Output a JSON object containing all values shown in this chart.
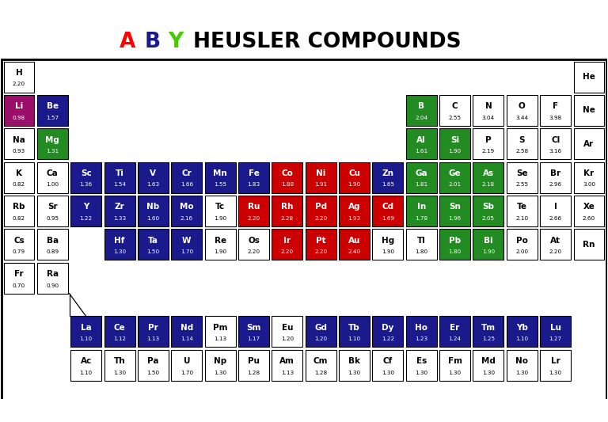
{
  "elements": [
    {
      "symbol": "H",
      "value": "2.20",
      "row": 0,
      "col": 0,
      "color": "#FFFFFF",
      "text_color": "black"
    },
    {
      "symbol": "He",
      "value": "",
      "row": 0,
      "col": 17,
      "color": "#FFFFFF",
      "text_color": "black"
    },
    {
      "symbol": "Li",
      "value": "0.98",
      "row": 1,
      "col": 0,
      "color": "#9B0F6A",
      "text_color": "white"
    },
    {
      "symbol": "Be",
      "value": "1.57",
      "row": 1,
      "col": 1,
      "color": "#1a1a8c",
      "text_color": "white"
    },
    {
      "symbol": "B",
      "value": "2.04",
      "row": 1,
      "col": 12,
      "color": "#228B22",
      "text_color": "white"
    },
    {
      "symbol": "C",
      "value": "2.55",
      "row": 1,
      "col": 13,
      "color": "#FFFFFF",
      "text_color": "black"
    },
    {
      "symbol": "N",
      "value": "3.04",
      "row": 1,
      "col": 14,
      "color": "#FFFFFF",
      "text_color": "black"
    },
    {
      "symbol": "O",
      "value": "3.44",
      "row": 1,
      "col": 15,
      "color": "#FFFFFF",
      "text_color": "black"
    },
    {
      "symbol": "F",
      "value": "3.98",
      "row": 1,
      "col": 16,
      "color": "#FFFFFF",
      "text_color": "black"
    },
    {
      "symbol": "Ne",
      "value": "",
      "row": 1,
      "col": 17,
      "color": "#FFFFFF",
      "text_color": "black"
    },
    {
      "symbol": "Na",
      "value": "0.93",
      "row": 2,
      "col": 0,
      "color": "#FFFFFF",
      "text_color": "black"
    },
    {
      "symbol": "Mg",
      "value": "1.31",
      "row": 2,
      "col": 1,
      "color": "#228B22",
      "text_color": "white"
    },
    {
      "symbol": "Al",
      "value": "1.61",
      "row": 2,
      "col": 12,
      "color": "#228B22",
      "text_color": "white"
    },
    {
      "symbol": "Si",
      "value": "1.90",
      "row": 2,
      "col": 13,
      "color": "#228B22",
      "text_color": "white"
    },
    {
      "symbol": "P",
      "value": "2.19",
      "row": 2,
      "col": 14,
      "color": "#FFFFFF",
      "text_color": "black"
    },
    {
      "symbol": "S",
      "value": "2.58",
      "row": 2,
      "col": 15,
      "color": "#FFFFFF",
      "text_color": "black"
    },
    {
      "symbol": "Cl",
      "value": "3.16",
      "row": 2,
      "col": 16,
      "color": "#FFFFFF",
      "text_color": "black"
    },
    {
      "symbol": "Ar",
      "value": "",
      "row": 2,
      "col": 17,
      "color": "#FFFFFF",
      "text_color": "black"
    },
    {
      "symbol": "K",
      "value": "0.82",
      "row": 3,
      "col": 0,
      "color": "#FFFFFF",
      "text_color": "black"
    },
    {
      "symbol": "Ca",
      "value": "1.00",
      "row": 3,
      "col": 1,
      "color": "#FFFFFF",
      "text_color": "black"
    },
    {
      "symbol": "Sc",
      "value": "1.36",
      "row": 3,
      "col": 2,
      "color": "#1a1a8c",
      "text_color": "white"
    },
    {
      "symbol": "Ti",
      "value": "1.54",
      "row": 3,
      "col": 3,
      "color": "#1a1a8c",
      "text_color": "white"
    },
    {
      "symbol": "V",
      "value": "1.63",
      "row": 3,
      "col": 4,
      "color": "#1a1a8c",
      "text_color": "white"
    },
    {
      "symbol": "Cr",
      "value": "1.66",
      "row": 3,
      "col": 5,
      "color": "#1a1a8c",
      "text_color": "white"
    },
    {
      "symbol": "Mn",
      "value": "1.55",
      "row": 3,
      "col": 6,
      "color": "#1a1a8c",
      "text_color": "white"
    },
    {
      "symbol": "Fe",
      "value": "1.83",
      "row": 3,
      "col": 7,
      "color": "#1a1a8c",
      "text_color": "white"
    },
    {
      "symbol": "Co",
      "value": "1.88",
      "row": 3,
      "col": 8,
      "color": "#CC0000",
      "text_color": "white"
    },
    {
      "symbol": "Ni",
      "value": "1.91",
      "row": 3,
      "col": 9,
      "color": "#CC0000",
      "text_color": "white"
    },
    {
      "symbol": "Cu",
      "value": "1.90",
      "row": 3,
      "col": 10,
      "color": "#CC0000",
      "text_color": "white"
    },
    {
      "symbol": "Zn",
      "value": "1.65",
      "row": 3,
      "col": 11,
      "color": "#1a1a8c",
      "text_color": "white"
    },
    {
      "symbol": "Ga",
      "value": "1.81",
      "row": 3,
      "col": 12,
      "color": "#228B22",
      "text_color": "white"
    },
    {
      "symbol": "Ge",
      "value": "2.01",
      "row": 3,
      "col": 13,
      "color": "#228B22",
      "text_color": "white"
    },
    {
      "symbol": "As",
      "value": "2.18",
      "row": 3,
      "col": 14,
      "color": "#228B22",
      "text_color": "white"
    },
    {
      "symbol": "Se",
      "value": "2.55",
      "row": 3,
      "col": 15,
      "color": "#FFFFFF",
      "text_color": "black"
    },
    {
      "symbol": "Br",
      "value": "2.96",
      "row": 3,
      "col": 16,
      "color": "#FFFFFF",
      "text_color": "black"
    },
    {
      "symbol": "Kr",
      "value": "3.00",
      "row": 3,
      "col": 17,
      "color": "#FFFFFF",
      "text_color": "black"
    },
    {
      "symbol": "Rb",
      "value": "0.82",
      "row": 4,
      "col": 0,
      "color": "#FFFFFF",
      "text_color": "black"
    },
    {
      "symbol": "Sr",
      "value": "0.95",
      "row": 4,
      "col": 1,
      "color": "#FFFFFF",
      "text_color": "black"
    },
    {
      "symbol": "Y",
      "value": "1.22",
      "row": 4,
      "col": 2,
      "color": "#1a1a8c",
      "text_color": "white"
    },
    {
      "symbol": "Zr",
      "value": "1.33",
      "row": 4,
      "col": 3,
      "color": "#1a1a8c",
      "text_color": "white"
    },
    {
      "symbol": "Nb",
      "value": "1.60",
      "row": 4,
      "col": 4,
      "color": "#1a1a8c",
      "text_color": "white"
    },
    {
      "symbol": "Mo",
      "value": "2.16",
      "row": 4,
      "col": 5,
      "color": "#1a1a8c",
      "text_color": "white"
    },
    {
      "symbol": "Tc",
      "value": "1.90",
      "row": 4,
      "col": 6,
      "color": "#FFFFFF",
      "text_color": "black"
    },
    {
      "symbol": "Ru",
      "value": "2.20",
      "row": 4,
      "col": 7,
      "color": "#CC0000",
      "text_color": "white"
    },
    {
      "symbol": "Rh",
      "value": "2.28",
      "row": 4,
      "col": 8,
      "color": "#CC0000",
      "text_color": "white"
    },
    {
      "symbol": "Pd",
      "value": "2.20",
      "row": 4,
      "col": 9,
      "color": "#CC0000",
      "text_color": "white"
    },
    {
      "symbol": "Ag",
      "value": "1.93",
      "row": 4,
      "col": 10,
      "color": "#CC0000",
      "text_color": "white"
    },
    {
      "symbol": "Cd",
      "value": "1.69",
      "row": 4,
      "col": 11,
      "color": "#CC0000",
      "text_color": "white"
    },
    {
      "symbol": "In",
      "value": "1.78",
      "row": 4,
      "col": 12,
      "color": "#228B22",
      "text_color": "white"
    },
    {
      "symbol": "Sn",
      "value": "1.96",
      "row": 4,
      "col": 13,
      "color": "#228B22",
      "text_color": "white"
    },
    {
      "symbol": "Sb",
      "value": "2.05",
      "row": 4,
      "col": 14,
      "color": "#228B22",
      "text_color": "white"
    },
    {
      "symbol": "Te",
      "value": "2.10",
      "row": 4,
      "col": 15,
      "color": "#FFFFFF",
      "text_color": "black"
    },
    {
      "symbol": "I",
      "value": "2.66",
      "row": 4,
      "col": 16,
      "color": "#FFFFFF",
      "text_color": "black"
    },
    {
      "symbol": "Xe",
      "value": "2.60",
      "row": 4,
      "col": 17,
      "color": "#FFFFFF",
      "text_color": "black"
    },
    {
      "symbol": "Cs",
      "value": "0.79",
      "row": 5,
      "col": 0,
      "color": "#FFFFFF",
      "text_color": "black"
    },
    {
      "symbol": "Ba",
      "value": "0.89",
      "row": 5,
      "col": 1,
      "color": "#FFFFFF",
      "text_color": "black"
    },
    {
      "symbol": "Hf",
      "value": "1.30",
      "row": 5,
      "col": 3,
      "color": "#1a1a8c",
      "text_color": "white"
    },
    {
      "symbol": "Ta",
      "value": "1.50",
      "row": 5,
      "col": 4,
      "color": "#1a1a8c",
      "text_color": "white"
    },
    {
      "symbol": "W",
      "value": "1.70",
      "row": 5,
      "col": 5,
      "color": "#1a1a8c",
      "text_color": "white"
    },
    {
      "symbol": "Re",
      "value": "1.90",
      "row": 5,
      "col": 6,
      "color": "#FFFFFF",
      "text_color": "black"
    },
    {
      "symbol": "Os",
      "value": "2.20",
      "row": 5,
      "col": 7,
      "color": "#FFFFFF",
      "text_color": "black"
    },
    {
      "symbol": "Ir",
      "value": "2.20",
      "row": 5,
      "col": 8,
      "color": "#CC0000",
      "text_color": "white"
    },
    {
      "symbol": "Pt",
      "value": "2.20",
      "row": 5,
      "col": 9,
      "color": "#CC0000",
      "text_color": "white"
    },
    {
      "symbol": "Au",
      "value": "2.40",
      "row": 5,
      "col": 10,
      "color": "#CC0000",
      "text_color": "white"
    },
    {
      "symbol": "Hg",
      "value": "1.90",
      "row": 5,
      "col": 11,
      "color": "#FFFFFF",
      "text_color": "black"
    },
    {
      "symbol": "Tl",
      "value": "1.80",
      "row": 5,
      "col": 12,
      "color": "#FFFFFF",
      "text_color": "black"
    },
    {
      "symbol": "Pb",
      "value": "1.80",
      "row": 5,
      "col": 13,
      "color": "#228B22",
      "text_color": "white"
    },
    {
      "symbol": "Bi",
      "value": "1.90",
      "row": 5,
      "col": 14,
      "color": "#228B22",
      "text_color": "white"
    },
    {
      "symbol": "Po",
      "value": "2.00",
      "row": 5,
      "col": 15,
      "color": "#FFFFFF",
      "text_color": "black"
    },
    {
      "symbol": "At",
      "value": "2.20",
      "row": 5,
      "col": 16,
      "color": "#FFFFFF",
      "text_color": "black"
    },
    {
      "symbol": "Rn",
      "value": "",
      "row": 5,
      "col": 17,
      "color": "#FFFFFF",
      "text_color": "black"
    },
    {
      "symbol": "Fr",
      "value": "0.70",
      "row": 6,
      "col": 0,
      "color": "#FFFFFF",
      "text_color": "black"
    },
    {
      "symbol": "Ra",
      "value": "0.90",
      "row": 6,
      "col": 1,
      "color": "#FFFFFF",
      "text_color": "black"
    },
    {
      "symbol": "La",
      "value": "1.10",
      "row": 8,
      "col": 2,
      "color": "#1a1a8c",
      "text_color": "white"
    },
    {
      "symbol": "Ce",
      "value": "1.12",
      "row": 8,
      "col": 3,
      "color": "#1a1a8c",
      "text_color": "white"
    },
    {
      "symbol": "Pr",
      "value": "1.13",
      "row": 8,
      "col": 4,
      "color": "#1a1a8c",
      "text_color": "white"
    },
    {
      "symbol": "Nd",
      "value": "1.14",
      "row": 8,
      "col": 5,
      "color": "#1a1a8c",
      "text_color": "white"
    },
    {
      "symbol": "Pm",
      "value": "1.13",
      "row": 8,
      "col": 6,
      "color": "#FFFFFF",
      "text_color": "black"
    },
    {
      "symbol": "Sm",
      "value": "1.17",
      "row": 8,
      "col": 7,
      "color": "#1a1a8c",
      "text_color": "white"
    },
    {
      "symbol": "Eu",
      "value": "1.20",
      "row": 8,
      "col": 8,
      "color": "#FFFFFF",
      "text_color": "black"
    },
    {
      "symbol": "Gd",
      "value": "1.20",
      "row": 8,
      "col": 9,
      "color": "#1a1a8c",
      "text_color": "white"
    },
    {
      "symbol": "Tb",
      "value": "1.10",
      "row": 8,
      "col": 10,
      "color": "#1a1a8c",
      "text_color": "white"
    },
    {
      "symbol": "Dy",
      "value": "1.22",
      "row": 8,
      "col": 11,
      "color": "#1a1a8c",
      "text_color": "white"
    },
    {
      "symbol": "Ho",
      "value": "1.23",
      "row": 8,
      "col": 12,
      "color": "#1a1a8c",
      "text_color": "white"
    },
    {
      "symbol": "Er",
      "value": "1.24",
      "row": 8,
      "col": 13,
      "color": "#1a1a8c",
      "text_color": "white"
    },
    {
      "symbol": "Tm",
      "value": "1.25",
      "row": 8,
      "col": 14,
      "color": "#1a1a8c",
      "text_color": "white"
    },
    {
      "symbol": "Yb",
      "value": "1.10",
      "row": 8,
      "col": 15,
      "color": "#1a1a8c",
      "text_color": "white"
    },
    {
      "symbol": "Lu",
      "value": "1.27",
      "row": 8,
      "col": 16,
      "color": "#1a1a8c",
      "text_color": "white"
    },
    {
      "symbol": "Ac",
      "value": "1.10",
      "row": 9,
      "col": 2,
      "color": "#FFFFFF",
      "text_color": "black"
    },
    {
      "symbol": "Th",
      "value": "1.30",
      "row": 9,
      "col": 3,
      "color": "#FFFFFF",
      "text_color": "black"
    },
    {
      "symbol": "Pa",
      "value": "1.50",
      "row": 9,
      "col": 4,
      "color": "#FFFFFF",
      "text_color": "black"
    },
    {
      "symbol": "U",
      "value": "1.70",
      "row": 9,
      "col": 5,
      "color": "#FFFFFF",
      "text_color": "black"
    },
    {
      "symbol": "Np",
      "value": "1.30",
      "row": 9,
      "col": 6,
      "color": "#FFFFFF",
      "text_color": "black"
    },
    {
      "symbol": "Pu",
      "value": "1.28",
      "row": 9,
      "col": 7,
      "color": "#FFFFFF",
      "text_color": "black"
    },
    {
      "symbol": "Am",
      "value": "1.13",
      "row": 9,
      "col": 8,
      "color": "#FFFFFF",
      "text_color": "black"
    },
    {
      "symbol": "Cm",
      "value": "1.28",
      "row": 9,
      "col": 9,
      "color": "#FFFFFF",
      "text_color": "black"
    },
    {
      "symbol": "Bk",
      "value": "1.30",
      "row": 9,
      "col": 10,
      "color": "#FFFFFF",
      "text_color": "black"
    },
    {
      "symbol": "Cf",
      "value": "1.30",
      "row": 9,
      "col": 11,
      "color": "#FFFFFF",
      "text_color": "black"
    },
    {
      "symbol": "Es",
      "value": "1.30",
      "row": 9,
      "col": 12,
      "color": "#FFFFFF",
      "text_color": "black"
    },
    {
      "symbol": "Fm",
      "value": "1.30",
      "row": 9,
      "col": 13,
      "color": "#FFFFFF",
      "text_color": "black"
    },
    {
      "symbol": "Md",
      "value": "1.30",
      "row": 9,
      "col": 14,
      "color": "#FFFFFF",
      "text_color": "black"
    },
    {
      "symbol": "No",
      "value": "1.30",
      "row": 9,
      "col": 15,
      "color": "#FFFFFF",
      "text_color": "black"
    },
    {
      "symbol": "Lr",
      "value": "1.30",
      "row": 9,
      "col": 16,
      "color": "#FFFFFF",
      "text_color": "black"
    }
  ],
  "title_A_color": "#FF0000",
  "title_B_color": "#1a1a8c",
  "title_Y_color": "#44CC00",
  "title_rest": "  HEUSLER COMPOUNDS",
  "title_rest_color": "#000000",
  "fig_width": 7.68,
  "fig_height": 5.33,
  "dpi": 100
}
